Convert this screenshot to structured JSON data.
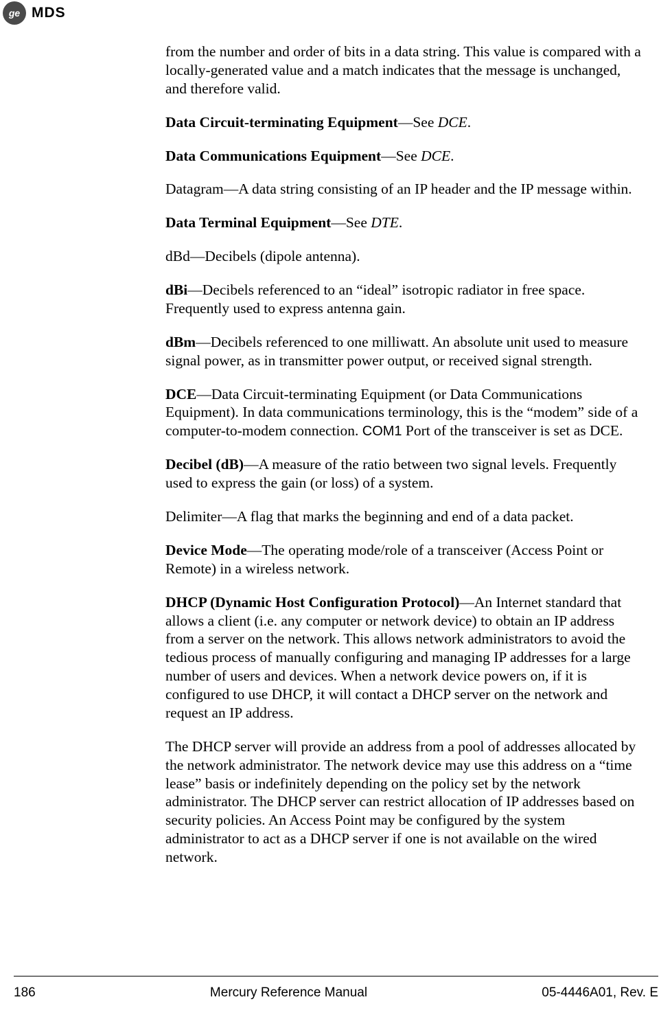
{
  "header": {
    "logo_inner": "ge",
    "brand_text": "MDS"
  },
  "paragraphs": {
    "p1": "from the number and order of bits in a data string. This value is compared with a locally-generated value and a match indicates that the message is unchanged, and therefore valid.",
    "p2_term": "Data Circuit-terminating Equipment",
    "p2_mid": "—See ",
    "p2_ref": "DCE",
    "p2_end": ".",
    "p3_term": "Data Communications Equipment",
    "p3_mid": "—See ",
    "p3_ref": "DCE",
    "p3_end": ".",
    "p4": "Datagram—A data string consisting of an IP header and the IP message within.",
    "p5_term": "Data Terminal Equipment",
    "p5_mid": "—See ",
    "p5_ref": "DTE",
    "p5_end": ".",
    "p6": "dBd—Decibels (dipole antenna).",
    "p7_term": "dBi",
    "p7_rest": "—Decibels referenced to an “ideal” isotropic radiator in free space. Frequently used to express antenna gain.",
    "p8_term": "dBm",
    "p8_rest": "—Decibels referenced to one milliwatt. An absolute unit used to measure signal power, as in transmitter power output, or received signal strength.",
    "p9_term": "DCE",
    "p9_part1": "—Data Circuit-terminating Equipment (or Data Communications Equipment). In data communications terminology, this is the “modem” side of a computer-to-modem connection. ",
    "p9_mono": "COM1",
    "p9_part2": " Port of the transceiver is set as DCE.",
    "p10_term": "Decibel (dB)",
    "p10_rest": "—A measure of the ratio between two signal levels. Frequently used to express the gain (or loss) of a system.",
    "p11": "Delimiter—A flag that marks the beginning and end of a data packet.",
    "p12_term": "Device Mode",
    "p12_rest": "—The operating mode/role of a transceiver (Access Point or Remote) in a wireless network.",
    "p13_term": "DHCP (Dynamic Host Configuration Protocol)",
    "p13_rest": "—An Internet standard that allows a client (i.e. any computer or network device) to obtain an IP address from a server on the network. This allows network administrators to avoid the tedious process of manually configuring and managing IP addresses for a large number of users and devices. When a network device powers on, if it is configured to use DHCP, it will contact a DHCP server on the network and request an IP address.",
    "p14": "The DHCP server will provide an address from a pool of addresses allocated by the network administrator. The network device may use this address on a “time lease” basis or indefinitely depending on the policy set by the network administrator. The DHCP server can restrict allocation of IP addresses based on security policies. An Access Point may be configured by the system administrator to act as a DHCP server if one is not available on the wired network."
  },
  "footer": {
    "page_number": "186",
    "title": "Mercury Reference Manual",
    "doc_id": "05-4446A01, Rev. E"
  },
  "styles": {
    "body_font_size": 21.5,
    "footer_font_size": 19,
    "text_color": "#000000",
    "background_color": "#ffffff"
  }
}
